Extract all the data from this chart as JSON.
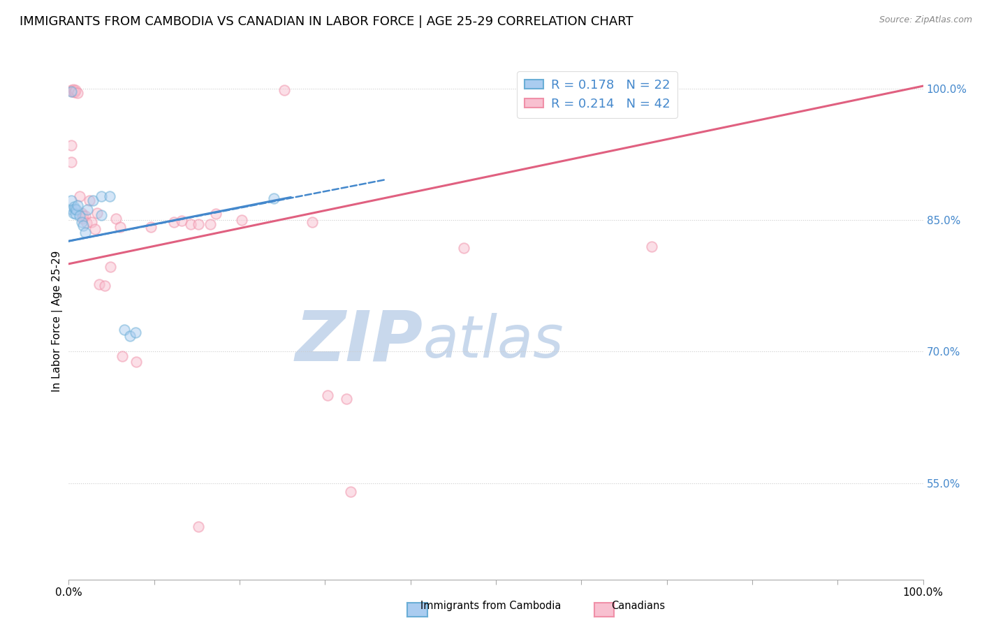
{
  "title": "IMMIGRANTS FROM CAMBODIA VS CANADIAN IN LABOR FORCE | AGE 25-29 CORRELATION CHART",
  "source": "Source: ZipAtlas.com",
  "ylabel": "In Labor Force | Age 25-29",
  "ytick_labels": [
    "100.0%",
    "85.0%",
    "70.0%",
    "55.0%"
  ],
  "ytick_values": [
    1.0,
    0.85,
    0.7,
    0.55
  ],
  "xlim": [
    0.0,
    1.0
  ],
  "ylim": [
    0.44,
    1.03
  ],
  "legend_entries": [
    {
      "label": "R = 0.178   N = 22"
    },
    {
      "label": "R = 0.214   N = 42"
    }
  ],
  "blue_scatter": [
    [
      0.003,
      0.997
    ],
    [
      0.003,
      0.872
    ],
    [
      0.004,
      0.862
    ],
    [
      0.005,
      0.858
    ],
    [
      0.006,
      0.865
    ],
    [
      0.007,
      0.863
    ],
    [
      0.008,
      0.857
    ],
    [
      0.009,
      0.862
    ],
    [
      0.01,
      0.867
    ],
    [
      0.013,
      0.855
    ],
    [
      0.015,
      0.848
    ],
    [
      0.017,
      0.844
    ],
    [
      0.019,
      0.836
    ],
    [
      0.022,
      0.862
    ],
    [
      0.028,
      0.872
    ],
    [
      0.038,
      0.877
    ],
    [
      0.048,
      0.877
    ],
    [
      0.065,
      0.725
    ],
    [
      0.072,
      0.718
    ],
    [
      0.078,
      0.722
    ],
    [
      0.24,
      0.875
    ],
    [
      0.038,
      0.856
    ]
  ],
  "pink_scatter": [
    [
      0.003,
      0.998
    ],
    [
      0.003,
      0.935
    ],
    [
      0.003,
      0.916
    ],
    [
      0.004,
      0.997
    ],
    [
      0.005,
      0.999
    ],
    [
      0.006,
      0.997
    ],
    [
      0.007,
      0.996
    ],
    [
      0.008,
      0.998
    ],
    [
      0.01,
      0.995
    ],
    [
      0.013,
      0.877
    ],
    [
      0.015,
      0.858
    ],
    [
      0.016,
      0.852
    ],
    [
      0.017,
      0.855
    ],
    [
      0.019,
      0.855
    ],
    [
      0.021,
      0.847
    ],
    [
      0.024,
      0.872
    ],
    [
      0.027,
      0.848
    ],
    [
      0.031,
      0.84
    ],
    [
      0.033,
      0.858
    ],
    [
      0.036,
      0.777
    ],
    [
      0.042,
      0.775
    ],
    [
      0.049,
      0.797
    ],
    [
      0.055,
      0.852
    ],
    [
      0.06,
      0.842
    ],
    [
      0.063,
      0.695
    ],
    [
      0.079,
      0.688
    ],
    [
      0.096,
      0.842
    ],
    [
      0.123,
      0.848
    ],
    [
      0.132,
      0.849
    ],
    [
      0.143,
      0.845
    ],
    [
      0.152,
      0.845
    ],
    [
      0.166,
      0.845
    ],
    [
      0.172,
      0.857
    ],
    [
      0.202,
      0.85
    ],
    [
      0.252,
      0.998
    ],
    [
      0.285,
      0.848
    ],
    [
      0.303,
      0.65
    ],
    [
      0.325,
      0.646
    ],
    [
      0.462,
      0.818
    ],
    [
      0.682,
      0.82
    ],
    [
      0.33,
      0.54
    ],
    [
      0.152,
      0.5
    ]
  ],
  "blue_line_solid": {
    "x0": 0.0,
    "y0": 0.826,
    "x1": 0.26,
    "y1": 0.876
  },
  "blue_line_dash": {
    "x0": 0.0,
    "y0": 0.826,
    "x1": 0.37,
    "y1": 0.896
  },
  "pink_line": {
    "x0": 0.0,
    "y0": 0.8,
    "x1": 1.0,
    "y1": 1.003
  },
  "scatter_size": 110,
  "scatter_alpha": 0.5,
  "scatter_linewidth": 1.4,
  "blue_edge_color": "#6aaed6",
  "blue_face_color": "#aaccf0",
  "pink_edge_color": "#f090a8",
  "pink_face_color": "#f8c0d0",
  "blue_line_color": "#4488cc",
  "pink_line_color": "#e06080",
  "grid_color": "#cccccc",
  "background_color": "#ffffff",
  "watermark_zip": "ZIP",
  "watermark_atlas": "atlas",
  "watermark_color_zip": "#c8d8ec",
  "watermark_color_atlas": "#c8d8ec",
  "title_fontsize": 13,
  "axis_label_fontsize": 11,
  "tick_fontsize": 11,
  "legend_fontsize": 13,
  "right_tick_color": "#4488cc"
}
